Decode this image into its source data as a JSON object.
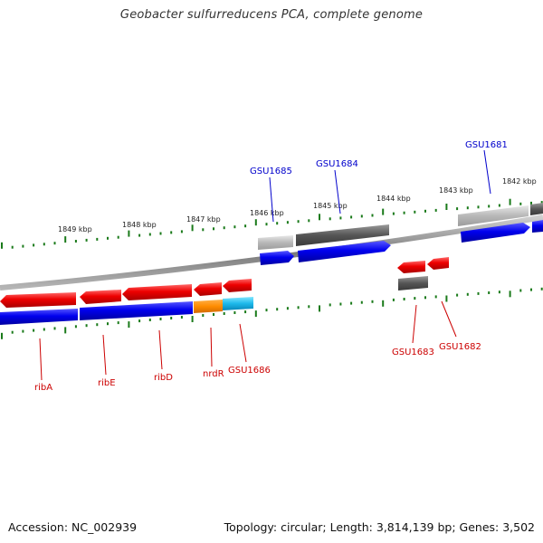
{
  "title": "Geobacter sulfurreducens PCA, complete genome",
  "footer": {
    "accession": "Accession: NC_002939",
    "topology": "Topology: circular; Length: 3,814,139 bp; Genes: 3,502"
  },
  "kbp_labels": [
    "1849 kbp",
    "1848 kbp",
    "1847 kbp",
    "1846 kbp",
    "1845 kbp",
    "1844 kbp",
    "1843 kbp",
    "1842 kbp"
  ],
  "genes": [
    {
      "name": "ribA",
      "strand": "minus",
      "color": "#cc0000"
    },
    {
      "name": "ribE",
      "strand": "minus",
      "color": "#cc0000"
    },
    {
      "name": "ribD",
      "strand": "minus",
      "color": "#cc0000"
    },
    {
      "name": "nrdR",
      "strand": "minus",
      "color": "#cc0000"
    },
    {
      "name": "GSU1686",
      "strand": "minus",
      "color": "#cc0000"
    },
    {
      "name": "GSU1685",
      "strand": "plus",
      "color": "#0000cc"
    },
    {
      "name": "GSU1684",
      "strand": "plus",
      "color": "#0000cc"
    },
    {
      "name": "GSU1683",
      "strand": "minus",
      "color": "#cc0000"
    },
    {
      "name": "GSU1682",
      "strand": "minus",
      "color": "#cc0000"
    },
    {
      "name": "GSU1681",
      "strand": "plus",
      "color": "#0000cc"
    }
  ],
  "colors": {
    "forward_cds": "#0000ee",
    "reverse_cds": "#ee0000",
    "tick": "#1a7a1a",
    "backbone": "#888888"
  }
}
